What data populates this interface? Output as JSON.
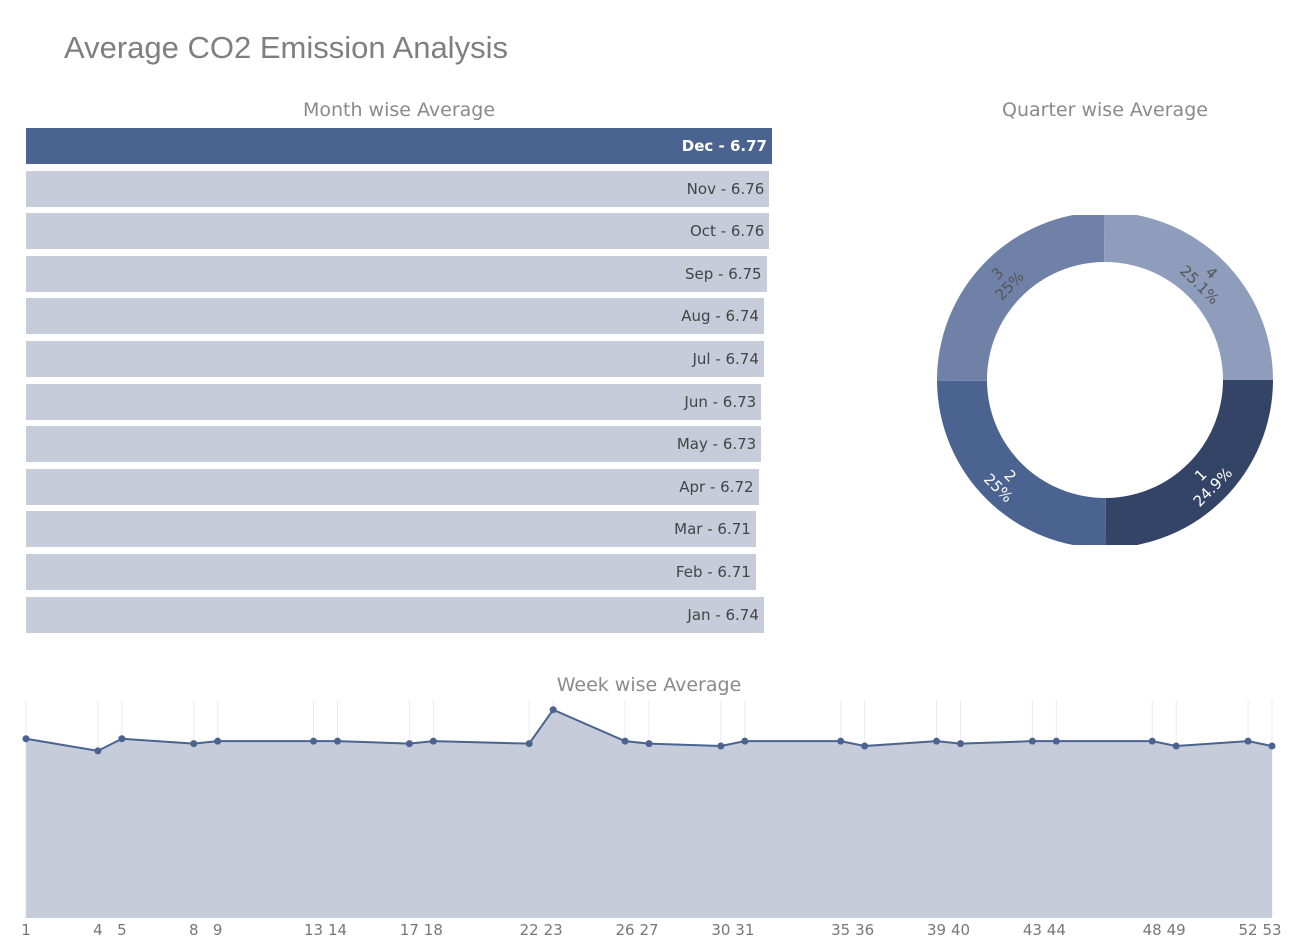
{
  "page": {
    "title": "Average CO2 Emission Analysis"
  },
  "month_panel": {
    "title": "Month wise Average"
  },
  "quarter_panel": {
    "title": "Quarter wise Average"
  },
  "week_panel": {
    "title": "Week wise Average"
  },
  "colors": {
    "highlight_bar": "#4a6391",
    "bar": "#c6ccd9",
    "line": "#4a6391",
    "area": "#c6ccd9",
    "gridline": "#e8ebf2",
    "q1": "#334466",
    "q2": "#4a6391",
    "q3": "#6f81a7",
    "q4": "#8d9dbb"
  },
  "chart_data": [
    {
      "type": "bar",
      "orientation": "horizontal",
      "title": "Month wise Average",
      "categories": [
        "Dec",
        "Nov",
        "Oct",
        "Sep",
        "Aug",
        "Jul",
        "Jun",
        "May",
        "Apr",
        "Mar",
        "Feb",
        "Jan"
      ],
      "values": [
        6.77,
        6.76,
        6.76,
        6.75,
        6.74,
        6.74,
        6.73,
        6.73,
        6.72,
        6.71,
        6.71,
        6.74
      ],
      "labels": [
        "Dec - 6.77",
        "Nov - 6.76",
        "Oct - 6.76",
        "Sep - 6.75",
        "Aug - 6.74",
        "Jul - 6.74",
        "Jun - 6.73",
        "May - 6.73",
        "Apr - 6.72",
        "Mar - 6.71",
        "Feb - 6.71",
        "Jan - 6.74"
      ],
      "highlight": "Dec"
    },
    {
      "type": "pie",
      "hole": true,
      "title": "Quarter wise Average",
      "slices": [
        {
          "label": "1",
          "percent": 24.9,
          "text": "24.9%"
        },
        {
          "label": "2",
          "percent": 25.0,
          "text": "25%"
        },
        {
          "label": "3",
          "percent": 25.0,
          "text": "25%"
        },
        {
          "label": "4",
          "percent": 25.1,
          "text": "25.1%"
        }
      ]
    },
    {
      "type": "area",
      "title": "Week wise Average",
      "x": [
        1,
        4,
        5,
        8,
        9,
        13,
        14,
        17,
        18,
        22,
        23,
        26,
        27,
        30,
        31,
        35,
        36,
        39,
        40,
        43,
        44,
        48,
        49,
        52,
        53
      ],
      "y": [
        6.74,
        6.69,
        6.74,
        6.72,
        6.73,
        6.73,
        6.73,
        6.72,
        6.73,
        6.72,
        6.86,
        6.73,
        6.72,
        6.71,
        6.73,
        6.73,
        6.71,
        6.73,
        6.72,
        6.73,
        6.73,
        6.73,
        6.71,
        6.73,
        6.71
      ],
      "xticks": [
        "1",
        "4",
        "5",
        "8",
        "9",
        "13",
        "14",
        "17",
        "18",
        "22",
        "23",
        "26",
        "27",
        "30",
        "31",
        "35",
        "36",
        "39",
        "40",
        "43",
        "44",
        "48",
        "49",
        "52",
        "53"
      ],
      "xlim": [
        1,
        53
      ],
      "ylim": [
        6.0,
        6.9
      ]
    }
  ]
}
